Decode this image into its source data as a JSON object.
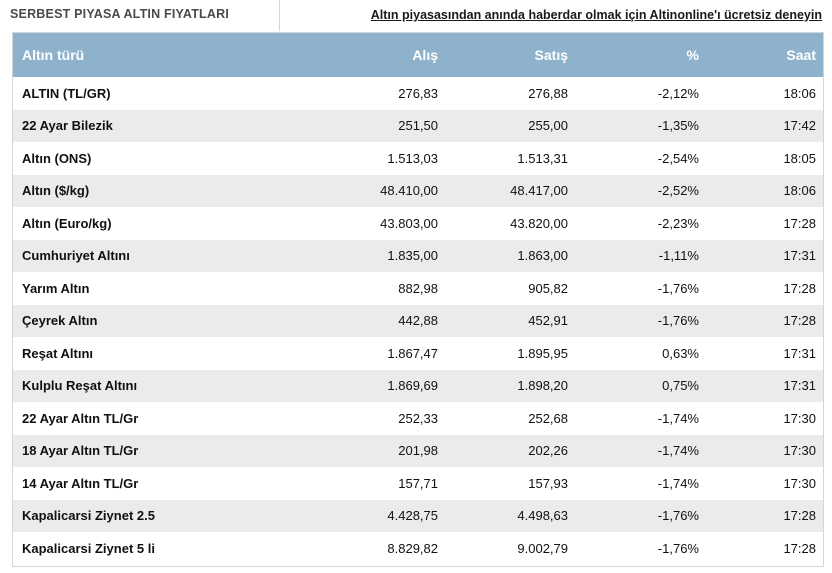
{
  "header": {
    "section_title": "SERBEST PIYASA ALTIN FIYATLARI",
    "promo_link": "Altın piyasasından anında haberdar olmak için Altinonline'ı ücretsiz deneyin"
  },
  "table": {
    "columns": [
      "Altın türü",
      "Alış",
      "Satış",
      "%",
      "Saat"
    ],
    "rows": [
      [
        "ALTIN (TL/GR)",
        "276,83",
        "276,88",
        "-2,12%",
        "18:06"
      ],
      [
        "22 Ayar Bilezik",
        "251,50",
        "255,00",
        "-1,35%",
        "17:42"
      ],
      [
        "Altın (ONS)",
        "1.513,03",
        "1.513,31",
        "-2,54%",
        "18:05"
      ],
      [
        "Altın ($/kg)",
        "48.410,00",
        "48.417,00",
        "-2,52%",
        "18:06"
      ],
      [
        "Altın (Euro/kg)",
        "43.803,00",
        "43.820,00",
        "-2,23%",
        "17:28"
      ],
      [
        "Cumhuriyet Altını",
        "1.835,00",
        "1.863,00",
        "-1,11%",
        "17:31"
      ],
      [
        "Yarım Altın",
        "882,98",
        "905,82",
        "-1,76%",
        "17:28"
      ],
      [
        "Çeyrek Altın",
        "442,88",
        "452,91",
        "-1,76%",
        "17:28"
      ],
      [
        "Reşat Altını",
        "1.867,47",
        "1.895,95",
        "0,63%",
        "17:31"
      ],
      [
        "Kulplu Reşat Altını",
        "1.869,69",
        "1.898,20",
        "0,75%",
        "17:31"
      ],
      [
        "22 Ayar Altın TL/Gr",
        "252,33",
        "252,68",
        "-1,74%",
        "17:30"
      ],
      [
        "18 Ayar Altın TL/Gr",
        "201,98",
        "202,26",
        "-1,74%",
        "17:30"
      ],
      [
        "14 Ayar Altın TL/Gr",
        "157,71",
        "157,93",
        "-1,74%",
        "17:30"
      ],
      [
        "Kapalicarsi Ziynet 2.5",
        "4.428,75",
        "4.498,63",
        "-1,76%",
        "17:28"
      ],
      [
        "Kapalicarsi Ziynet 5 li",
        "8.829,82",
        "9.002,79",
        "-1,76%",
        "17:28"
      ]
    ]
  },
  "colors": {
    "header_bg": "#8fb2cc",
    "row_alt_bg": "#ebebeb"
  }
}
